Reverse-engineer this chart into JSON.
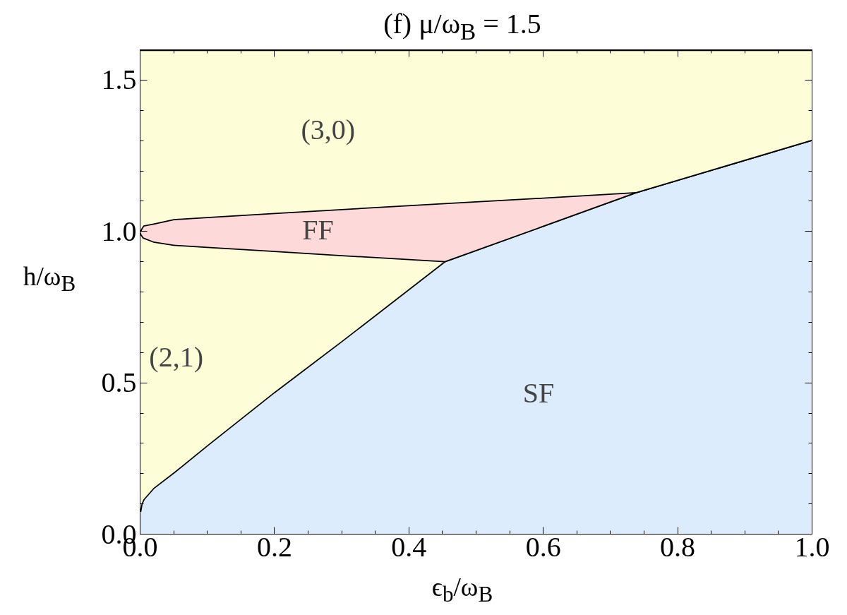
{
  "chart_data": {
    "type": "area",
    "stacked": true,
    "title": "(f)  μ/ω$_{B}$ = 1.5",
    "xlabel": "ϵ$_{b}$/ω$_{B}$",
    "ylabel": "h/ω$_{B}$",
    "xlim": [
      0,
      1
    ],
    "ylim": [
      0,
      1.6
    ],
    "xticks": [
      {
        "value": 0,
        "label": "0.0"
      },
      0.2,
      0.4,
      0.6,
      0.8,
      {
        "value": 1,
        "label": "1.0"
      }
    ],
    "yticks": [
      {
        "value": 0,
        "label": "0.0"
      },
      0.5,
      {
        "value": 1,
        "label": "1.0"
      },
      1.5
    ],
    "grid": false,
    "x": [
      0,
      0.002,
      0.005,
      0.02,
      0.05,
      0.1,
      0.2,
      0.3,
      0.4535,
      0.6,
      0.738,
      0.85,
      1.0
    ],
    "series": [
      {
        "name": "SF",
        "color": "#dcecfc",
        "values": [
          0.074,
          0.1,
          0.115,
          0.153,
          0.204,
          0.294,
          0.47,
          0.638,
          0.902,
          1.019,
          1.13,
          1.204,
          1.303
        ]
      },
      {
        "name": "(2,1)",
        "color": "#fdfdd7",
        "values": [
          0.926,
          0.89,
          0.865,
          0.814,
          0.752,
          0.655,
          0.466,
          0.284,
          0,
          0,
          0,
          0,
          0
        ]
      },
      {
        "name": "FF",
        "color": "#fed9da",
        "values": [
          0,
          0.02,
          0.04,
          0.059,
          0.085,
          0.099,
          0.125,
          0.152,
          0.192,
          0.093,
          0,
          0,
          0
        ]
      },
      {
        "name": "(3,0)",
        "color": "#fdfdd7",
        "values": [
          0.6,
          0.59,
          0.58,
          0.574,
          0.559,
          0.552,
          0.539,
          0.526,
          0.506,
          0.488,
          0.47,
          0.396,
          0.297
        ]
      }
    ]
  }
}
